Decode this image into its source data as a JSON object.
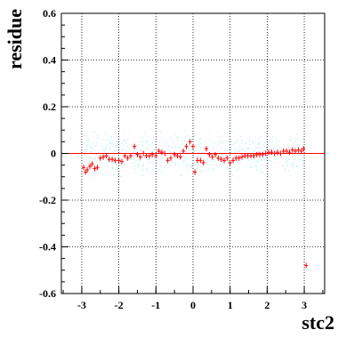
{
  "chart_data": {
    "type": "scatter",
    "xlabel": "stc2",
    "ylabel": "residue",
    "xlim": [
      -3.55,
      3.55
    ],
    "ylim": [
      -0.6,
      0.6
    ],
    "grid": true,
    "x_ticks": [
      -3,
      -2,
      -1,
      0,
      1,
      2,
      3
    ],
    "x_tick_labels": [
      "-3",
      "-2",
      "-1",
      "0",
      "1",
      "2",
      "3"
    ],
    "y_ticks": [
      -0.6,
      -0.4,
      -0.2,
      0,
      0.2,
      0.4,
      0.6
    ],
    "y_tick_labels": [
      "-0.6",
      "-0.4",
      "-0.2",
      "0",
      "0.2",
      "0.4",
      "0.6"
    ],
    "reference_line": {
      "y": 0,
      "color": "#ff0000"
    },
    "series": [
      {
        "color": "#ff0000",
        "marker": "cross",
        "points": [
          [
            -2.95,
            -0.06
          ],
          [
            -2.9,
            -0.08
          ],
          [
            -2.85,
            -0.07
          ],
          [
            -2.78,
            -0.055
          ],
          [
            -2.72,
            -0.045
          ],
          [
            -2.65,
            -0.065
          ],
          [
            -2.58,
            -0.06
          ],
          [
            -2.5,
            -0.02
          ],
          [
            -2.42,
            -0.015
          ],
          [
            -2.34,
            -0.01
          ],
          [
            -2.26,
            -0.025
          ],
          [
            -2.18,
            -0.025
          ],
          [
            -2.1,
            -0.03
          ],
          [
            -2.0,
            -0.03
          ],
          [
            -1.92,
            -0.035
          ],
          [
            -1.84,
            -0.01
          ],
          [
            -1.76,
            -0.02
          ],
          [
            -1.68,
            -0.01
          ],
          [
            -1.58,
            0.03
          ],
          [
            -1.5,
            -0.005
          ],
          [
            -1.42,
            -0.015
          ],
          [
            -1.34,
            0.0
          ],
          [
            -1.26,
            -0.01
          ],
          [
            -1.18,
            -0.01
          ],
          [
            -1.1,
            -0.005
          ],
          [
            -1.0,
            -0.01
          ],
          [
            -0.92,
            0.01
          ],
          [
            -0.84,
            0.005
          ],
          [
            -0.76,
            0.0
          ],
          [
            -0.68,
            -0.03
          ],
          [
            -0.6,
            -0.02
          ],
          [
            -0.5,
            -0.005
          ],
          [
            -0.42,
            -0.01
          ],
          [
            -0.34,
            -0.015
          ],
          [
            -0.26,
            0.01
          ],
          [
            -0.18,
            0.03
          ],
          [
            -0.08,
            0.05
          ],
          [
            0.0,
            0.03
          ],
          [
            0.05,
            -0.08
          ],
          [
            0.12,
            -0.03
          ],
          [
            0.2,
            -0.03
          ],
          [
            0.28,
            -0.04
          ],
          [
            0.36,
            0.02
          ],
          [
            0.44,
            -0.005
          ],
          [
            0.52,
            -0.015
          ],
          [
            0.6,
            -0.005
          ],
          [
            0.68,
            -0.02
          ],
          [
            0.76,
            -0.025
          ],
          [
            0.84,
            -0.03
          ],
          [
            0.92,
            -0.02
          ],
          [
            1.0,
            -0.04
          ],
          [
            1.08,
            -0.03
          ],
          [
            1.16,
            -0.02
          ],
          [
            1.24,
            -0.02
          ],
          [
            1.32,
            -0.015
          ],
          [
            1.4,
            -0.01
          ],
          [
            1.48,
            -0.01
          ],
          [
            1.56,
            -0.01
          ],
          [
            1.64,
            -0.01
          ],
          [
            1.72,
            -0.005
          ],
          [
            1.8,
            -0.005
          ],
          [
            1.88,
            -0.005
          ],
          [
            1.96,
            0.0
          ],
          [
            2.04,
            0.005
          ],
          [
            2.12,
            0.005
          ],
          [
            2.2,
            0.0
          ],
          [
            2.28,
            0.005
          ],
          [
            2.36,
            0.0
          ],
          [
            2.44,
            0.01
          ],
          [
            2.52,
            0.01
          ],
          [
            2.6,
            0.005
          ],
          [
            2.68,
            0.015
          ],
          [
            2.76,
            0.01
          ],
          [
            2.84,
            0.015
          ],
          [
            2.92,
            0.01
          ],
          [
            2.98,
            0.02
          ],
          [
            3.05,
            -0.48
          ]
        ]
      }
    ]
  }
}
